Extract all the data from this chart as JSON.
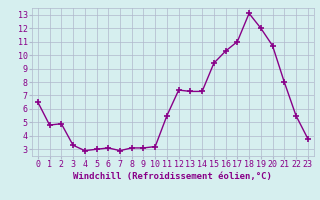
{
  "x": [
    0,
    1,
    2,
    3,
    4,
    5,
    6,
    7,
    8,
    9,
    10,
    11,
    12,
    13,
    14,
    15,
    16,
    17,
    18,
    19,
    20,
    21,
    22,
    23
  ],
  "y": [
    6.5,
    4.8,
    4.9,
    3.3,
    2.9,
    3.0,
    3.1,
    2.9,
    3.1,
    3.1,
    3.2,
    5.5,
    7.4,
    7.3,
    7.3,
    9.4,
    10.3,
    11.0,
    13.1,
    12.0,
    10.7,
    8.0,
    5.5,
    3.8
  ],
  "line_color": "#880088",
  "marker": "+",
  "marker_size": 4,
  "marker_linewidth": 1.2,
  "xlabel": "Windchill (Refroidissement éolien,°C)",
  "ylabel": "",
  "title": "",
  "xlim": [
    -0.5,
    23.5
  ],
  "ylim": [
    2.5,
    13.5
  ],
  "yticks": [
    3,
    4,
    5,
    6,
    7,
    8,
    9,
    10,
    11,
    12,
    13
  ],
  "xticks": [
    0,
    1,
    2,
    3,
    4,
    5,
    6,
    7,
    8,
    9,
    10,
    11,
    12,
    13,
    14,
    15,
    16,
    17,
    18,
    19,
    20,
    21,
    22,
    23
  ],
  "bg_color": "#d6efef",
  "grid_color": "#b0b8cc",
  "tick_label_color": "#880088",
  "axis_label_color": "#880088",
  "label_fontsize": 6.5,
  "tick_fontsize": 6.0,
  "line_width": 1.0
}
